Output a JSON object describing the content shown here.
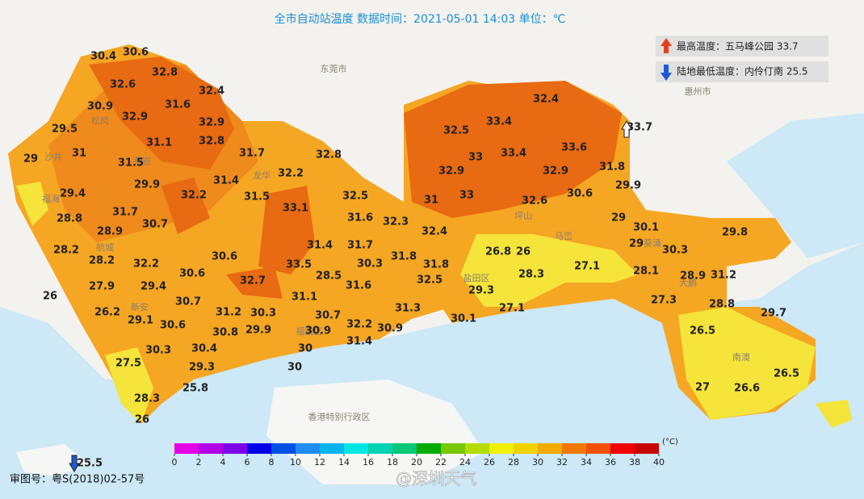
{
  "title": "全市自动站温度  数据时间：2021-05-01 14:03  单位：℃",
  "max_box": "最高温度：五马峰公园 33.7",
  "min_box": "陆地最低温度：内伶仃南 25.5",
  "place_labels": [
    "东莞市",
    "惠州市",
    "香港特别行政区",
    "盐田区",
    "南澳",
    "福田区",
    "马峦",
    "葵涌",
    "大鹏",
    "新安",
    "航城",
    "福海",
    "沙井",
    "松岗",
    "石岩",
    "龙华",
    "坪山"
  ],
  "stations": [
    30.4,
    30.6,
    32.8,
    32.6,
    32.4,
    30.9,
    31.6,
    32.9,
    32.9,
    29.5,
    31.1,
    32.8,
    29,
    31,
    31.7,
    32.8,
    31.5,
    32.2,
    31.4,
    29.9,
    29.4,
    32.2,
    31.5,
    32.5,
    33.1,
    28.8,
    31.7,
    30.7,
    31.6,
    32.3,
    28.9,
    28.2,
    31.4,
    31.7,
    30.6,
    28.2,
    32.2,
    33.5,
    30.3,
    31.8,
    30.6,
    28.5,
    27.9,
    29.4,
    32.7,
    31.6,
    26,
    30.7,
    31.1,
    26.2,
    31.2,
    30.3,
    30.7,
    31.3,
    29.1,
    30.6,
    30.8,
    29.9,
    30.9,
    32.2,
    30.9,
    31.4,
    30.3,
    30.4,
    30,
    27.5,
    29.3,
    30,
    25.8,
    28.3,
    26,
    25.5,
    32.4,
    32.5,
    33.4,
    33,
    33.4,
    33.6,
    33.7,
    32.9,
    32.9,
    31.8,
    31,
    33,
    32.6,
    30.6,
    29.9,
    32.4,
    29,
    30.1,
    29.8,
    26.8,
    26,
    29,
    30.3,
    31.8,
    32.5,
    27.1,
    28.1,
    28.3,
    28.9,
    31.2,
    29.3,
    27.3,
    28.8,
    27.1,
    29.7,
    30.1,
    26.5,
    27,
    26.6,
    26.5
  ],
  "legend": {
    "unit": "(°C)",
    "ticks": [
      0,
      2,
      4,
      6,
      8,
      10,
      12,
      14,
      16,
      18,
      20,
      22,
      24,
      26,
      28,
      30,
      32,
      34,
      36,
      38,
      40
    ],
    "colors": [
      "#e600e6",
      "#b400e6",
      "#7d00e6",
      "#0000e6",
      "#0050e6",
      "#1e8cf0",
      "#0ab4f0",
      "#00e6e6",
      "#00d2b4",
      "#00c878",
      "#00aa00",
      "#78c800",
      "#b4dc00",
      "#f0f000",
      "#f0d200",
      "#f0aa00",
      "#f07800",
      "#f05000",
      "#f00000",
      "#c80000"
    ]
  },
  "footer": "审图号：粤S(2018)02-57号",
  "watermark": "@深圳天气"
}
